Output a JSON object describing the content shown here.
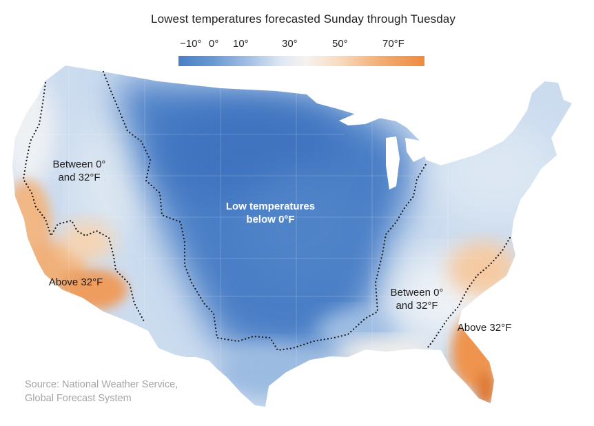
{
  "title": "Lowest temperatures forecasted Sunday through Tuesday",
  "legend": {
    "ticks": [
      "−10°",
      "0°",
      "10°",
      "30°",
      "50°",
      "70°F"
    ],
    "colors": [
      "#4a7fc6",
      "#a9c4e6",
      "#f6f2ee",
      "#f3b27a",
      "#ed8a40"
    ]
  },
  "regions": {
    "cold_core": "Low temperatures\nbelow 0°F",
    "west_between": "Between 0°\nand 32°F",
    "west_above": "Above 32°F",
    "east_between": "Between 0°\nand 32°F",
    "east_above": "Above 32°F"
  },
  "source": "Source: National Weather Service,\nGlobal Forecast System"
}
